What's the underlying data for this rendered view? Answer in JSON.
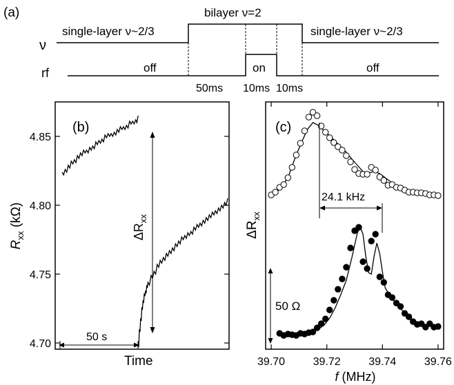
{
  "panel_a": {
    "label": "(a)",
    "nu_label": "ν",
    "rf_label": "rf",
    "left_state": "single-layer ν~2/3",
    "middle_state": "bilayer ν=2",
    "right_state": "single-layer ν~2/3",
    "rf_off_left": "off",
    "rf_on": "on",
    "rf_off_right": "off",
    "durations": [
      "50ms",
      "10ms",
      "10ms"
    ]
  },
  "chart_data": [
    {
      "panel": "(b)",
      "type": "line",
      "xlabel": "Time",
      "ylabel_main": "R",
      "ylabel_sub": "xx",
      "ylabel_unit": " (kΩ)",
      "yticks": [
        "4.70",
        "4.75",
        "4.80",
        "4.85"
      ],
      "ytick_values": [
        4.7,
        4.75,
        4.8,
        4.85
      ],
      "ylim": [
        4.695,
        4.875
      ],
      "x_ticks_visible": false,
      "scale_bar_label": "50 s",
      "scale_bar_seconds": 50,
      "delta_label_main": "ΔR",
      "delta_label_sub": "xx",
      "series": [
        {
          "x": [
            0,
            5,
            10,
            15,
            20,
            25,
            30,
            35,
            40,
            45,
            50,
            55,
            60,
            65,
            70,
            75,
            80,
            85,
            90,
            95,
            100,
            105,
            110,
            115,
            120,
            124
          ],
          "y": [
            4.824,
            4.826,
            4.829,
            4.832,
            4.833,
            4.836,
            4.838,
            4.84,
            4.84,
            4.842,
            4.843,
            4.846,
            4.847,
            4.848,
            4.851,
            4.852,
            4.852,
            4.853,
            4.855,
            4.857,
            4.857,
            4.858,
            4.861,
            4.861,
            4.862,
            4.865
          ]
        },
        {
          "x": [
            124,
            126,
            128,
            130,
            132,
            134,
            136,
            138,
            140,
            145,
            150,
            155,
            160,
            165,
            170,
            175,
            180,
            185,
            190,
            195,
            200,
            205,
            210,
            215,
            220,
            225,
            230,
            235,
            240,
            245,
            250,
            255,
            260,
            265,
            270
          ],
          "y": [
            4.699,
            4.71,
            4.718,
            4.726,
            4.731,
            4.736,
            4.738,
            4.742,
            4.744,
            4.749,
            4.752,
            4.757,
            4.76,
            4.762,
            4.765,
            4.767,
            4.769,
            4.772,
            4.774,
            4.777,
            4.778,
            4.78,
            4.781,
            4.784,
            4.786,
            4.787,
            4.789,
            4.791,
            4.793,
            4.795,
            4.796,
            4.798,
            4.8,
            4.802,
            4.805
          ]
        }
      ]
    },
    {
      "panel": "(c)",
      "type": "scatter",
      "xlabel_main": "f",
      "xlabel_unit": " (MHz)",
      "ylabel_main": "ΔR",
      "ylabel_sub": "xx",
      "xticks": [
        "39.70",
        "39.72",
        "39.74",
        "39.76"
      ],
      "xtick_values": [
        39.7,
        39.72,
        39.74,
        39.76
      ],
      "xlim": [
        39.698,
        39.762
      ],
      "annotation_split": "24.1 kHz",
      "scale_bar_label": "50 Ω",
      "scale_bar_ohm": 50,
      "series": [
        {
          "style": "open-circles",
          "x": [
            39.7,
            39.7015,
            39.703,
            39.7045,
            39.706,
            39.7075,
            39.709,
            39.7105,
            39.712,
            39.7135,
            39.715,
            39.7165,
            39.718,
            39.7195,
            39.721,
            39.7225,
            39.724,
            39.7255,
            39.727,
            39.7285,
            39.73,
            39.7315,
            39.733,
            39.7345,
            39.736,
            39.7375,
            39.739,
            39.7405,
            39.742,
            39.7435,
            39.745,
            39.7465,
            39.748,
            39.7495,
            39.751,
            39.7525,
            39.754,
            39.7555,
            39.757,
            39.7585,
            39.76
          ],
          "y": [
            283,
            279,
            272,
            268,
            258,
            243,
            225,
            208,
            190,
            170,
            163,
            168,
            183,
            192,
            200,
            207,
            213,
            218,
            226,
            235,
            246,
            252,
            253,
            253,
            243,
            247,
            257,
            262,
            269,
            268,
            272,
            273,
            276,
            279,
            279,
            280,
            280,
            281,
            283,
            283,
            284
          ]
        },
        {
          "style": "filled-circles",
          "x": [
            39.703,
            39.7045,
            39.706,
            39.7075,
            39.709,
            39.7105,
            39.712,
            39.7135,
            39.715,
            39.7165,
            39.718,
            39.7195,
            39.721,
            39.7225,
            39.724,
            39.7255,
            39.727,
            39.7285,
            39.73,
            39.7315,
            39.733,
            39.7345,
            39.736,
            39.7375,
            39.739,
            39.7405,
            39.742,
            39.7435,
            39.745,
            39.7465,
            39.748,
            39.7495,
            39.751,
            39.7525,
            39.754,
            39.7555,
            39.757,
            39.7585,
            39.76
          ],
          "y": [
            484,
            487,
            485,
            486,
            487,
            484,
            485,
            483,
            482,
            476,
            470,
            463,
            450,
            436,
            420,
            405,
            388,
            360,
            335,
            330,
            380,
            390,
            350,
            340,
            402,
            410,
            428,
            432,
            440,
            445,
            455,
            460,
            467,
            471,
            470,
            475,
            470,
            475,
            474
          ]
        }
      ],
      "fit_curves": [
        {
          "x": [
            39.7,
            39.703,
            39.706,
            39.709,
            39.711,
            39.713,
            39.715,
            39.717,
            39.719,
            39.721,
            39.723,
            39.725,
            39.727,
            39.729,
            39.731,
            39.733,
            39.735,
            39.737,
            39.739,
            39.741,
            39.743,
            39.746,
            39.749,
            39.752,
            39.755,
            39.758,
            39.76
          ],
          "y": [
            284,
            275,
            258,
            225,
            206,
            188,
            178,
            182,
            190,
            197,
            205,
            213,
            221,
            231,
            240,
            249,
            251,
            249,
            252,
            258,
            264,
            272,
            278,
            280,
            281,
            283,
            284
          ]
        },
        {
          "x": [
            39.703,
            39.706,
            39.709,
            39.712,
            39.715,
            39.717,
            39.719,
            39.721,
            39.723,
            39.725,
            39.727,
            39.729,
            39.731,
            39.732,
            39.733,
            39.734,
            39.735,
            39.736,
            39.737,
            39.738,
            39.739,
            39.74,
            39.741,
            39.743,
            39.745,
            39.748,
            39.751,
            39.754,
            39.757,
            39.76
          ],
          "y": [
            486,
            486,
            485,
            484,
            482,
            478,
            472,
            462,
            447,
            428,
            407,
            374,
            338,
            330,
            340,
            372,
            396,
            398,
            372,
            353,
            368,
            395,
            418,
            432,
            441,
            455,
            465,
            470,
            472,
            474
          ]
        }
      ]
    }
  ]
}
